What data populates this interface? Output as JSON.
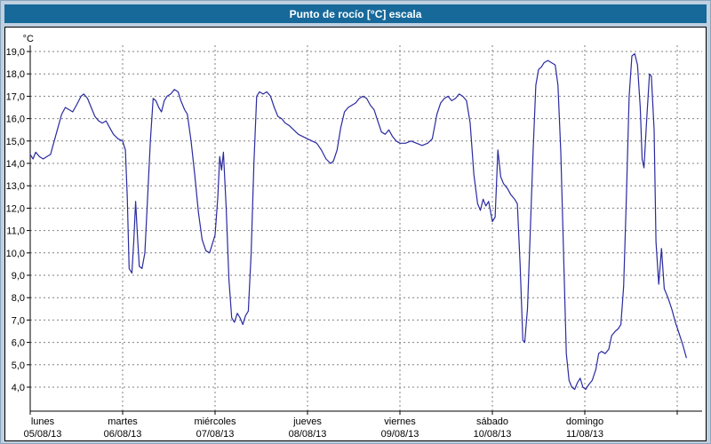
{
  "title_bar": {
    "title": "Punto de rocío [°C] escala"
  },
  "colors": {
    "titlebar_bg": "#17699a",
    "titlebar_text": "#ffffff",
    "frame_bg": "#bfd0e0",
    "plot_bg": "#ffffff",
    "grid": "#808080",
    "axis": "#000000",
    "line": "#2a2aa0"
  },
  "chart_data": {
    "type": "line",
    "title": "Punto de rocío [°C] escala",
    "unit_label": "°C",
    "ylabel": "Punto de rocío (°C)",
    "ylim": [
      4,
      19
    ],
    "y_tick_step": 1,
    "grid": "dashed",
    "legend": "none",
    "y_tick_labels": [
      "19,0",
      "18,0",
      "17,0",
      "16,0",
      "15,0",
      "14,0",
      "13,0",
      "12,0",
      "11,0",
      "10,0",
      "9,0",
      "8,0",
      "7,0",
      "6,0",
      "5,0",
      "4,0"
    ],
    "x_ticks": [
      {
        "name": "lunes",
        "date": "05/08/13"
      },
      {
        "name": "martes",
        "date": "06/08/13"
      },
      {
        "name": "miércoles",
        "date": "07/08/13"
      },
      {
        "name": "jueves",
        "date": "08/08/13"
      },
      {
        "name": "viernes",
        "date": "09/08/13"
      },
      {
        "name": "sábado",
        "date": "10/08/13"
      },
      {
        "name": "domingo",
        "date": "11/08/13"
      }
    ],
    "x_total_days": 7.25,
    "line_color": "#2a2aa0",
    "series": [
      {
        "name": "Punto de rocío",
        "points": [
          [
            0.0,
            14.4
          ],
          [
            0.03,
            14.2
          ],
          [
            0.06,
            14.5
          ],
          [
            0.1,
            14.3
          ],
          [
            0.14,
            14.2
          ],
          [
            0.18,
            14.3
          ],
          [
            0.22,
            14.4
          ],
          [
            0.26,
            15.0
          ],
          [
            0.3,
            15.6
          ],
          [
            0.34,
            16.2
          ],
          [
            0.38,
            16.5
          ],
          [
            0.42,
            16.4
          ],
          [
            0.46,
            16.3
          ],
          [
            0.5,
            16.6
          ],
          [
            0.55,
            17.0
          ],
          [
            0.58,
            17.1
          ],
          [
            0.62,
            16.9
          ],
          [
            0.66,
            16.5
          ],
          [
            0.7,
            16.1
          ],
          [
            0.74,
            15.9
          ],
          [
            0.78,
            15.8
          ],
          [
            0.82,
            15.9
          ],
          [
            0.86,
            15.6
          ],
          [
            0.9,
            15.3
          ],
          [
            0.95,
            15.1
          ],
          [
            1.0,
            15.0
          ],
          [
            1.03,
            14.6
          ],
          [
            1.05,
            12.5
          ],
          [
            1.07,
            9.3
          ],
          [
            1.1,
            9.1
          ],
          [
            1.12,
            10.5
          ],
          [
            1.14,
            12.3
          ],
          [
            1.16,
            10.8
          ],
          [
            1.18,
            9.4
          ],
          [
            1.21,
            9.3
          ],
          [
            1.24,
            10.0
          ],
          [
            1.27,
            12.5
          ],
          [
            1.3,
            15.0
          ],
          [
            1.33,
            16.9
          ],
          [
            1.36,
            16.8
          ],
          [
            1.39,
            16.5
          ],
          [
            1.42,
            16.3
          ],
          [
            1.45,
            16.8
          ],
          [
            1.48,
            17.0
          ],
          [
            1.52,
            17.1
          ],
          [
            1.56,
            17.3
          ],
          [
            1.6,
            17.2
          ],
          [
            1.63,
            16.8
          ],
          [
            1.67,
            16.4
          ],
          [
            1.7,
            16.2
          ],
          [
            1.74,
            15.0
          ],
          [
            1.78,
            13.5
          ],
          [
            1.82,
            11.8
          ],
          [
            1.86,
            10.6
          ],
          [
            1.9,
            10.1
          ],
          [
            1.94,
            10.0
          ],
          [
            1.97,
            10.4
          ],
          [
            2.0,
            10.8
          ],
          [
            2.03,
            12.5
          ],
          [
            2.05,
            14.3
          ],
          [
            2.07,
            13.7
          ],
          [
            2.09,
            14.5
          ],
          [
            2.12,
            12.0
          ],
          [
            2.15,
            8.8
          ],
          [
            2.18,
            7.1
          ],
          [
            2.21,
            6.9
          ],
          [
            2.24,
            7.3
          ],
          [
            2.27,
            7.1
          ],
          [
            2.3,
            6.8
          ],
          [
            2.33,
            7.2
          ],
          [
            2.36,
            7.4
          ],
          [
            2.39,
            10.0
          ],
          [
            2.42,
            14.0
          ],
          [
            2.45,
            17.0
          ],
          [
            2.48,
            17.2
          ],
          [
            2.52,
            17.1
          ],
          [
            2.56,
            17.2
          ],
          [
            2.6,
            17.0
          ],
          [
            2.64,
            16.5
          ],
          [
            2.68,
            16.1
          ],
          [
            2.72,
            16.0
          ],
          [
            2.76,
            15.8
          ],
          [
            2.8,
            15.7
          ],
          [
            2.85,
            15.5
          ],
          [
            2.9,
            15.3
          ],
          [
            2.95,
            15.2
          ],
          [
            3.0,
            15.1
          ],
          [
            3.05,
            15.0
          ],
          [
            3.1,
            14.9
          ],
          [
            3.15,
            14.6
          ],
          [
            3.2,
            14.2
          ],
          [
            3.25,
            14.0
          ],
          [
            3.28,
            14.1
          ],
          [
            3.32,
            14.6
          ],
          [
            3.36,
            15.6
          ],
          [
            3.4,
            16.3
          ],
          [
            3.44,
            16.5
          ],
          [
            3.48,
            16.6
          ],
          [
            3.52,
            16.7
          ],
          [
            3.56,
            16.9
          ],
          [
            3.6,
            17.0
          ],
          [
            3.64,
            16.9
          ],
          [
            3.68,
            16.6
          ],
          [
            3.72,
            16.4
          ],
          [
            3.76,
            15.9
          ],
          [
            3.8,
            15.4
          ],
          [
            3.84,
            15.3
          ],
          [
            3.88,
            15.5
          ],
          [
            3.92,
            15.2
          ],
          [
            3.96,
            15.0
          ],
          [
            4.0,
            14.9
          ],
          [
            4.06,
            14.9
          ],
          [
            4.12,
            15.0
          ],
          [
            4.18,
            14.9
          ],
          [
            4.24,
            14.8
          ],
          [
            4.3,
            14.9
          ],
          [
            4.35,
            15.1
          ],
          [
            4.4,
            16.2
          ],
          [
            4.44,
            16.7
          ],
          [
            4.48,
            16.9
          ],
          [
            4.52,
            17.0
          ],
          [
            4.56,
            16.8
          ],
          [
            4.6,
            16.9
          ],
          [
            4.64,
            17.1
          ],
          [
            4.68,
            17.0
          ],
          [
            4.72,
            16.8
          ],
          [
            4.76,
            15.8
          ],
          [
            4.8,
            13.5
          ],
          [
            4.84,
            12.2
          ],
          [
            4.87,
            11.9
          ],
          [
            4.9,
            12.4
          ],
          [
            4.93,
            12.1
          ],
          [
            4.96,
            12.3
          ],
          [
            5.0,
            11.4
          ],
          [
            5.03,
            11.6
          ],
          [
            5.06,
            14.6
          ],
          [
            5.09,
            13.4
          ],
          [
            5.12,
            13.1
          ],
          [
            5.16,
            12.9
          ],
          [
            5.2,
            12.6
          ],
          [
            5.24,
            12.4
          ],
          [
            5.27,
            12.2
          ],
          [
            5.3,
            9.5
          ],
          [
            5.33,
            6.1
          ],
          [
            5.35,
            6.0
          ],
          [
            5.38,
            7.5
          ],
          [
            5.41,
            10.9
          ],
          [
            5.44,
            14.5
          ],
          [
            5.47,
            17.5
          ],
          [
            5.5,
            18.2
          ],
          [
            5.53,
            18.3
          ],
          [
            5.56,
            18.5
          ],
          [
            5.6,
            18.6
          ],
          [
            5.64,
            18.5
          ],
          [
            5.68,
            18.4
          ],
          [
            5.71,
            17.5
          ],
          [
            5.74,
            14.5
          ],
          [
            5.77,
            10.0
          ],
          [
            5.8,
            5.5
          ],
          [
            5.83,
            4.3
          ],
          [
            5.86,
            4.0
          ],
          [
            5.89,
            3.9
          ],
          [
            5.92,
            4.2
          ],
          [
            5.95,
            4.4
          ],
          [
            5.98,
            4.0
          ],
          [
            6.01,
            3.9
          ],
          [
            6.04,
            4.1
          ],
          [
            6.08,
            4.3
          ],
          [
            6.12,
            4.8
          ],
          [
            6.15,
            5.5
          ],
          [
            6.18,
            5.6
          ],
          [
            6.22,
            5.5
          ],
          [
            6.26,
            5.7
          ],
          [
            6.29,
            6.3
          ],
          [
            6.33,
            6.5
          ],
          [
            6.36,
            6.6
          ],
          [
            6.39,
            6.8
          ],
          [
            6.42,
            8.5
          ],
          [
            6.45,
            12.5
          ],
          [
            6.48,
            17.0
          ],
          [
            6.51,
            18.8
          ],
          [
            6.54,
            18.9
          ],
          [
            6.57,
            18.4
          ],
          [
            6.6,
            16.5
          ],
          [
            6.62,
            14.2
          ],
          [
            6.64,
            13.8
          ],
          [
            6.67,
            16.0
          ],
          [
            6.7,
            18.0
          ],
          [
            6.72,
            17.9
          ],
          [
            6.75,
            15.5
          ],
          [
            6.77,
            10.5
          ],
          [
            6.8,
            8.6
          ],
          [
            6.83,
            10.2
          ],
          [
            6.86,
            8.4
          ],
          [
            6.9,
            8.0
          ],
          [
            6.94,
            7.5
          ],
          [
            6.98,
            6.9
          ],
          [
            7.02,
            6.4
          ],
          [
            7.06,
            5.9
          ],
          [
            7.1,
            5.3
          ]
        ]
      }
    ]
  }
}
